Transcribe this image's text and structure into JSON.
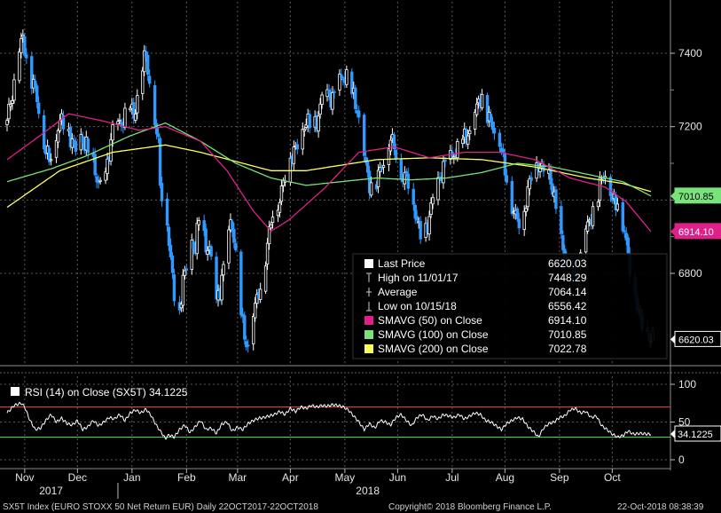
{
  "chart_data": [
    {
      "type": "candlestick",
      "series_name": "SX5T Index (EURO STOXX 50 Net Return EUR)",
      "y_ticks": [
        6800,
        7000,
        7200,
        7400
      ],
      "ylim": [
        6530,
        7470
      ],
      "y_tick_labels": [
        "6800",
        "7200",
        "7400"
      ],
      "x_months": [
        {
          "label": "Nov",
          "day": 10
        },
        {
          "label": "Dec",
          "day": 40
        },
        {
          "label": "Jan",
          "day": 71
        },
        {
          "label": "Feb",
          "day": 102
        },
        {
          "label": "Mar",
          "day": 131
        },
        {
          "label": "Apr",
          "day": 161
        },
        {
          "label": "May",
          "day": 192
        },
        {
          "label": "Jun",
          "day": 222
        },
        {
          "label": "Jul",
          "day": 253
        },
        {
          "label": "Aug",
          "day": 283
        },
        {
          "label": "Sep",
          "day": 314
        },
        {
          "label": "Oct",
          "day": 344
        }
      ],
      "x_years": [
        {
          "label": "2017",
          "day": 25
        },
        {
          "label": "2018",
          "day": 205
        }
      ],
      "year_divider_day": 63,
      "x_range_days": [
        0,
        367
      ],
      "close_anchors": [
        [
          0,
          7205
        ],
        [
          3,
          7290
        ],
        [
          6,
          7410
        ],
        [
          9,
          7430
        ],
        [
          12,
          7350
        ],
        [
          15,
          7330
        ],
        [
          18,
          7250
        ],
        [
          21,
          7140
        ],
        [
          24,
          7120
        ],
        [
          27,
          7160
        ],
        [
          30,
          7200
        ],
        [
          33,
          7220
        ],
        [
          36,
          7180
        ],
        [
          39,
          7120
        ],
        [
          42,
          7170
        ],
        [
          45,
          7160
        ],
        [
          48,
          7100
        ],
        [
          51,
          7050
        ],
        [
          54,
          7030
        ],
        [
          57,
          7100
        ],
        [
          60,
          7180
        ],
        [
          63,
          7210
        ],
        [
          66,
          7225
        ],
        [
          69,
          7260
        ],
        [
          72,
          7220
        ],
        [
          75,
          7330
        ],
        [
          78,
          7390
        ],
        [
          81,
          7320
        ],
        [
          84,
          7230
        ],
        [
          86,
          7160
        ],
        [
          87,
          7050
        ],
        [
          88,
          7005
        ],
        [
          90,
          7000
        ],
        [
          92,
          6880
        ],
        [
          94,
          6800
        ],
        [
          96,
          6720
        ],
        [
          98,
          6690
        ],
        [
          100,
          6770
        ],
        [
          103,
          6830
        ],
        [
          105,
          6900
        ],
        [
          107,
          6870
        ],
        [
          109,
          6940
        ],
        [
          111,
          6900
        ],
        [
          113,
          6880
        ],
        [
          115,
          6880
        ],
        [
          117,
          6790
        ],
        [
          119,
          6710
        ],
        [
          121,
          6750
        ],
        [
          123,
          6820
        ],
        [
          125,
          6880
        ],
        [
          127,
          6940
        ],
        [
          129,
          6890
        ],
        [
          131,
          6770
        ],
        [
          133,
          6700
        ],
        [
          135,
          6640
        ],
        [
          137,
          6600
        ],
        [
          139,
          6660
        ],
        [
          141,
          6700
        ],
        [
          143,
          6760
        ],
        [
          145,
          6780
        ],
        [
          147,
          6840
        ],
        [
          149,
          6900
        ],
        [
          151,
          6960
        ],
        [
          153,
          6990
        ],
        [
          155,
          7010
        ],
        [
          157,
          7050
        ],
        [
          159,
          7080
        ],
        [
          161,
          7110
        ],
        [
          164,
          7150
        ],
        [
          167,
          7180
        ],
        [
          170,
          7200
        ],
        [
          173,
          7210
        ],
        [
          176,
          7220
        ],
        [
          179,
          7260
        ],
        [
          182,
          7290
        ],
        [
          185,
          7290
        ],
        [
          188,
          7300
        ],
        [
          191,
          7330
        ],
        [
          194,
          7340
        ],
        [
          197,
          7280
        ],
        [
          200,
          7210
        ],
        [
          203,
          7130
        ],
        [
          206,
          7050
        ],
        [
          209,
          7020
        ],
        [
          212,
          7080
        ],
        [
          215,
          7140
        ],
        [
          218,
          7160
        ],
        [
          221,
          7120
        ],
        [
          224,
          7080
        ],
        [
          227,
          7060
        ],
        [
          230,
          7000
        ],
        [
          233,
          6950
        ],
        [
          236,
          6900
        ],
        [
          239,
          6920
        ],
        [
          242,
          7000
        ],
        [
          245,
          7060
        ],
        [
          248,
          7080
        ],
        [
          251,
          7100
        ],
        [
          254,
          7140
        ],
        [
          257,
          7140
        ],
        [
          260,
          7160
        ],
        [
          263,
          7190
        ],
        [
          266,
          7240
        ],
        [
          269,
          7270
        ],
        [
          272,
          7250
        ],
        [
          275,
          7220
        ],
        [
          278,
          7180
        ],
        [
          281,
          7130
        ],
        [
          284,
          7070
        ],
        [
          287,
          6980
        ],
        [
          290,
          6930
        ],
        [
          293,
          6960
        ],
        [
          296,
          7030
        ],
        [
          299,
          7070
        ],
        [
          302,
          7100
        ],
        [
          305,
          7090
        ],
        [
          308,
          7060
        ],
        [
          311,
          7000
        ],
        [
          314,
          6920
        ],
        [
          317,
          6850
        ],
        [
          320,
          6780
        ],
        [
          323,
          6790
        ],
        [
          326,
          6850
        ],
        [
          329,
          6900
        ],
        [
          332,
          6960
        ],
        [
          335,
          7000
        ],
        [
          338,
          7050
        ],
        [
          341,
          7070
        ],
        [
          344,
          7010
        ],
        [
          347,
          6990
        ],
        [
          350,
          6930
        ],
        [
          353,
          6860
        ],
        [
          356,
          6770
        ],
        [
          359,
          6680
        ],
        [
          362,
          6640
        ],
        [
          364,
          6656
        ],
        [
          366,
          6620
        ]
      ],
      "sma50_anchors": [
        [
          0,
          7110
        ],
        [
          20,
          7180
        ],
        [
          35,
          7235
        ],
        [
          55,
          7215
        ],
        [
          75,
          7190
        ],
        [
          90,
          7200
        ],
        [
          110,
          7160
        ],
        [
          125,
          7080
        ],
        [
          140,
          6970
        ],
        [
          150,
          6915
        ],
        [
          160,
          6945
        ],
        [
          180,
          7030
        ],
        [
          200,
          7130
        ],
        [
          220,
          7145
        ],
        [
          240,
          7115
        ],
        [
          260,
          7130
        ],
        [
          280,
          7130
        ],
        [
          300,
          7110
        ],
        [
          320,
          7060
        ],
        [
          340,
          7035
        ],
        [
          352,
          6995
        ],
        [
          366,
          6914
        ]
      ],
      "sma100_anchors": [
        [
          0,
          7050
        ],
        [
          25,
          7085
        ],
        [
          45,
          7120
        ],
        [
          70,
          7175
        ],
        [
          90,
          7210
        ],
        [
          110,
          7160
        ],
        [
          130,
          7100
        ],
        [
          150,
          7060
        ],
        [
          170,
          7040
        ],
        [
          190,
          7050
        ],
        [
          210,
          7060
        ],
        [
          230,
          7055
        ],
        [
          250,
          7060
        ],
        [
          270,
          7075
        ],
        [
          290,
          7100
        ],
        [
          310,
          7090
        ],
        [
          330,
          7070
        ],
        [
          350,
          7050
        ],
        [
          366,
          7011
        ]
      ],
      "sma200_anchors": [
        [
          0,
          6980
        ],
        [
          30,
          7080
        ],
        [
          60,
          7130
        ],
        [
          90,
          7150
        ],
        [
          110,
          7130
        ],
        [
          130,
          7105
        ],
        [
          150,
          7080
        ],
        [
          170,
          7080
        ],
        [
          190,
          7095
        ],
        [
          210,
          7110
        ],
        [
          240,
          7115
        ],
        [
          270,
          7110
        ],
        [
          300,
          7090
        ],
        [
          330,
          7060
        ],
        [
          350,
          7045
        ],
        [
          366,
          7023
        ]
      ],
      "legend": {
        "title": "Last Price",
        "rows": [
          {
            "label": "Last Price",
            "value": "6620.03",
            "swatch": "#ffffff"
          },
          {
            "label": "High on 11/01/17",
            "value": "7448.29",
            "swatch": "none"
          },
          {
            "label": "Average",
            "value": "7064.14",
            "swatch": "none"
          },
          {
            "label": "Low on 10/15/18",
            "value": "6556.42",
            "swatch": "none"
          },
          {
            "label": "SMAVG (50)   on Close",
            "value": "6914.10",
            "swatch": "#e0208a"
          },
          {
            "label": "SMAVG (100)  on Close",
            "value": "7010.85",
            "swatch": "#77e37a"
          },
          {
            "label": "SMAVG (200)  on Close",
            "value": "7022.78",
            "swatch": "#ffff60"
          }
        ]
      },
      "right_tags": [
        {
          "text": "7010.85",
          "value": 7010.85,
          "bg": "#77e37a",
          "fg": "#000000"
        },
        {
          "text": "6914.10",
          "value": 6914.1,
          "bg": "#e0208a",
          "fg": "#ffffff"
        },
        {
          "text": "6620.03",
          "value": 6620.03,
          "bg": "#000000",
          "fg": "#ffffff"
        }
      ],
      "colors": {
        "up": "#ffffff",
        "down": "#2f9aff",
        "sma50": "#e0208a",
        "sma100": "#77e37a",
        "sma200": "#ffff60",
        "grid": "#5a5a5a"
      }
    },
    {
      "type": "line",
      "series_name": "RSI (14)   on Close (SX5T) 34.1225",
      "legend_label": "RSI (14)   on Close (SX5T) 34.1225",
      "ylim": [
        0,
        100
      ],
      "y_tick_labels": [
        "100",
        "50",
        "0"
      ],
      "y_ticks": [
        0,
        50,
        100
      ],
      "overbought": 70,
      "oversold": 30,
      "last_value_tag": "34.1225",
      "last_value": 34.1225,
      "anchors": [
        [
          0,
          62
        ],
        [
          4,
          72
        ],
        [
          8,
          75
        ],
        [
          10,
          70
        ],
        [
          13,
          52
        ],
        [
          16,
          40
        ],
        [
          19,
          42
        ],
        [
          22,
          52
        ],
        [
          25,
          60
        ],
        [
          28,
          50
        ],
        [
          31,
          55
        ],
        [
          34,
          48
        ],
        [
          37,
          46
        ],
        [
          40,
          52
        ],
        [
          43,
          40
        ],
        [
          46,
          44
        ],
        [
          49,
          52
        ],
        [
          52,
          45
        ],
        [
          55,
          50
        ],
        [
          58,
          56
        ],
        [
          61,
          54
        ],
        [
          64,
          60
        ],
        [
          67,
          52
        ],
        [
          70,
          62
        ],
        [
          73,
          66
        ],
        [
          76,
          62
        ],
        [
          79,
          67
        ],
        [
          82,
          58
        ],
        [
          85,
          45
        ],
        [
          88,
          35
        ],
        [
          90,
          28
        ],
        [
          92,
          33
        ],
        [
          95,
          30
        ],
        [
          98,
          40
        ],
        [
          101,
          46
        ],
        [
          104,
          36
        ],
        [
          107,
          44
        ],
        [
          110,
          52
        ],
        [
          113,
          40
        ],
        [
          116,
          42
        ],
        [
          119,
          35
        ],
        [
          122,
          47
        ],
        [
          125,
          50
        ],
        [
          128,
          38
        ],
        [
          131,
          43
        ],
        [
          134,
          40
        ],
        [
          137,
          48
        ],
        [
          140,
          52
        ],
        [
          143,
          55
        ],
        [
          146,
          56
        ],
        [
          149,
          58
        ],
        [
          152,
          60
        ],
        [
          155,
          64
        ],
        [
          158,
          60
        ],
        [
          161,
          68
        ],
        [
          164,
          64
        ],
        [
          167,
          70
        ],
        [
          170,
          68
        ],
        [
          173,
          72
        ],
        [
          176,
          70
        ],
        [
          179,
          72
        ],
        [
          182,
          71
        ],
        [
          185,
          73
        ],
        [
          188,
          72
        ],
        [
          191,
          70
        ],
        [
          194,
          66
        ],
        [
          197,
          58
        ],
        [
          200,
          50
        ],
        [
          203,
          40
        ],
        [
          206,
          48
        ],
        [
          209,
          42
        ],
        [
          212,
          52
        ],
        [
          215,
          50
        ],
        [
          218,
          46
        ],
        [
          221,
          56
        ],
        [
          224,
          60
        ],
        [
          227,
          52
        ],
        [
          230,
          45
        ],
        [
          233,
          56
        ],
        [
          236,
          60
        ],
        [
          239,
          52
        ],
        [
          242,
          58
        ],
        [
          245,
          54
        ],
        [
          248,
          60
        ],
        [
          251,
          58
        ],
        [
          254,
          56
        ],
        [
          257,
          60
        ],
        [
          260,
          54
        ],
        [
          263,
          58
        ],
        [
          266,
          62
        ],
        [
          269,
          60
        ],
        [
          272,
          52
        ],
        [
          275,
          50
        ],
        [
          278,
          45
        ],
        [
          281,
          40
        ],
        [
          284,
          48
        ],
        [
          287,
          52
        ],
        [
          290,
          56
        ],
        [
          293,
          54
        ],
        [
          296,
          44
        ],
        [
          299,
          38
        ],
        [
          302,
          30
        ],
        [
          305,
          42
        ],
        [
          308,
          48
        ],
        [
          311,
          50
        ],
        [
          314,
          56
        ],
        [
          317,
          58
        ],
        [
          320,
          66
        ],
        [
          323,
          68
        ],
        [
          326,
          62
        ],
        [
          329,
          64
        ],
        [
          332,
          56
        ],
        [
          335,
          58
        ],
        [
          338,
          45
        ],
        [
          341,
          40
        ],
        [
          344,
          34
        ],
        [
          347,
          30
        ],
        [
          350,
          32
        ],
        [
          353,
          38
        ],
        [
          356,
          34
        ],
        [
          360,
          35
        ],
        [
          364,
          34
        ],
        [
          366,
          34.1
        ]
      ],
      "colors": {
        "line": "#ffffff",
        "overbought": "#e8403a",
        "oversold": "#4cd44f"
      }
    }
  ],
  "footer": {
    "left": "SX5T Index (EURO STOXX 50 Net Return EUR)   Daily 22OCT2017-22OCT2018",
    "center": "Copyright© 2018 Bloomberg Finance L.P.",
    "right": "22-Oct-2018 08:38:39"
  }
}
